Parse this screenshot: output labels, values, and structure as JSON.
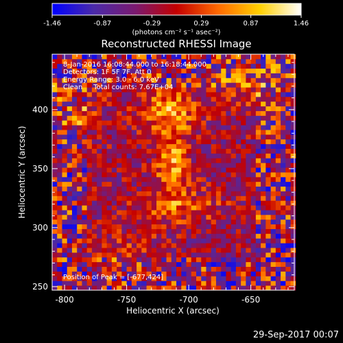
{
  "chart_data": {
    "type": "heatmap",
    "title": "Reconstructed RHESSI Image",
    "xlabel": "Heliocentric X (arcsec)",
    "ylabel": "Heliocentric Y (arcsec)",
    "xlim": [
      -810,
      -615
    ],
    "ylim": [
      247,
      447
    ],
    "x_ticks": [
      -800,
      -750,
      -700,
      -650
    ],
    "y_ticks": [
      250,
      300,
      350,
      400
    ],
    "colorbar": {
      "min": -1.46,
      "max": 1.46,
      "tick_labels": [
        "-1.46",
        "-0.87",
        "-0.29",
        "0.29",
        "0.87",
        "1.46"
      ],
      "unit": "(photons cm⁻² s⁻¹ asec⁻²)"
    },
    "annotations": [
      "8-Jan-2016 16:08:44.000 to 16:18:44.000",
      "Detectors: 1F 5F 7F, Att 0",
      "Energy Range: 3.0 - 6.0 keV",
      "Clean     Total counts: 7.67E+04"
    ],
    "peak_label": "Position of Peak = [-677,424]",
    "peak": {
      "x": -677,
      "y": 424
    },
    "sources": [
      {
        "x": -715,
        "y": 400,
        "sx": 16,
        "sy": 13,
        "amp": 0.95
      },
      {
        "x": -713,
        "y": 353,
        "sx": 9,
        "sy": 22,
        "amp": 1.05
      },
      {
        "x": -705,
        "y": 318,
        "sx": 28,
        "sy": 10,
        "amp": 0.55
      },
      {
        "x": -755,
        "y": 285,
        "sx": 20,
        "sy": 14,
        "amp": 0.35
      },
      {
        "x": -650,
        "y": 420,
        "sx": 20,
        "sy": 14,
        "amp": 0.45
      },
      {
        "x": -790,
        "y": 400,
        "sx": 18,
        "sy": 22,
        "amp": 0.35
      }
    ],
    "background_level": -0.3,
    "colormap": [
      "#0000ff",
      "#4a2aa8",
      "#7a1a70",
      "#c40000",
      "#ff6a00",
      "#ffd000",
      "#ffffff"
    ]
  },
  "footer": "29-Sep-2017 00:07"
}
